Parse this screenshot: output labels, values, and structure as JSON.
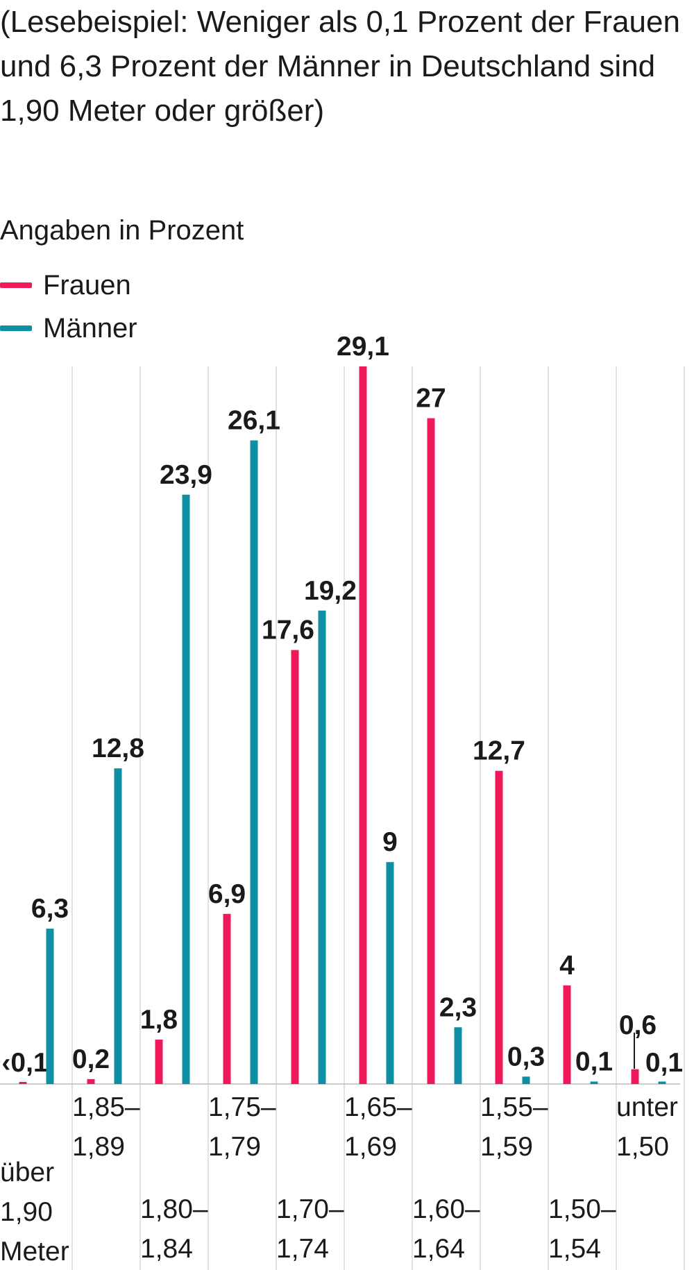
{
  "note": "(Lesebeispiel: Weniger als 0,1 Prozent der Frauen und 6,3 Prozent der Männer in Deutschland sind 1,90 Meter oder größer)",
  "unit_label": "Angaben in Prozent",
  "colors": {
    "frauen": "#f0195a",
    "maenner": "#0f8fa3",
    "grid": "#d9d9d9",
    "baseline": "#cccccc"
  },
  "chart_data": {
    "type": "bar",
    "legend_position": "top-left",
    "grid": true,
    "ylim": [
      0,
      29.1
    ],
    "categories": [
      [
        "über",
        "1,90",
        "Meter"
      ],
      [
        "1,85–",
        "1,89"
      ],
      [
        "1,80–",
        "1,84"
      ],
      [
        "1,75–",
        "1,79"
      ],
      [
        "1,70–",
        "1,74"
      ],
      [
        "1,65–",
        "1,69"
      ],
      [
        "1,60–",
        "1,64"
      ],
      [
        "1,55–",
        "1,59"
      ],
      [
        "1,50–",
        "1,54"
      ],
      [
        "unter",
        "1,50"
      ]
    ],
    "series": [
      {
        "name": "Frauen",
        "values": [
          0.05,
          0.2,
          1.8,
          6.9,
          17.6,
          29.1,
          27,
          12.7,
          4,
          0.6
        ],
        "labels": [
          "‹0,1",
          "0,2",
          "1,8",
          "6,9",
          "17,6",
          "29,1",
          "27",
          "12,7",
          "4",
          "0,6"
        ]
      },
      {
        "name": "Männer",
        "values": [
          6.3,
          12.8,
          23.9,
          26.1,
          19.2,
          9,
          2.3,
          0.3,
          0.1,
          0.1
        ],
        "labels": [
          "6,3",
          "12,8",
          "23,9",
          "26,1",
          "19,2",
          "9",
          "2,3",
          "0,3",
          "0,1",
          "0,1"
        ]
      }
    ]
  }
}
